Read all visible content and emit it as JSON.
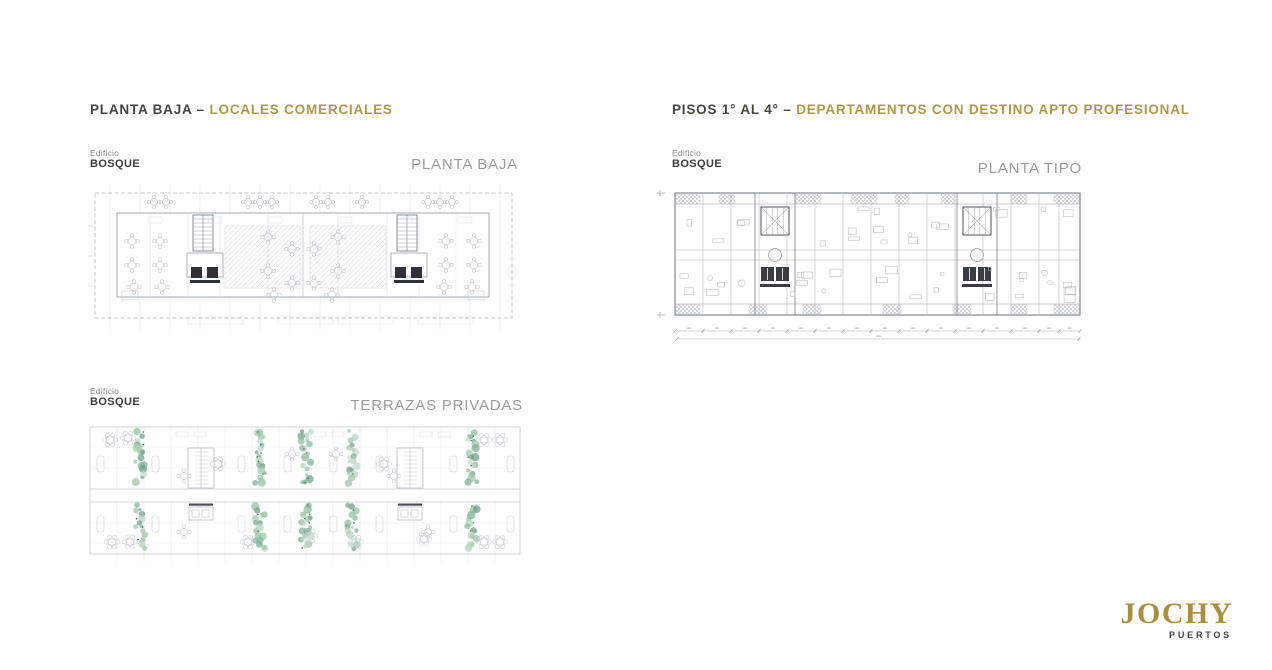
{
  "titles": {
    "left": {
      "main": "PLANTA BAJA –",
      "accent": "LOCALES COMERCIALES"
    },
    "right": {
      "main": "PISOS 1° AL 4° –",
      "accent": "DEPARTAMENTOS CON DESTINO APTO PROFESIONAL"
    }
  },
  "plans": {
    "planta_baja": {
      "edificio": "Edificio",
      "bosque": "BOSQUE",
      "name": "PLANTA BAJA"
    },
    "planta_tipo": {
      "edificio": "Edificio",
      "bosque": "BOSQUE",
      "name": "PLANTA TIPO"
    },
    "terrazas": {
      "edificio": "Edificio",
      "bosque": "BOSQUE",
      "name": "TERRAZAS PRIVADAS"
    }
  },
  "logo": {
    "brand": "JOCHY",
    "sub": "PUERTOS"
  },
  "colors": {
    "title_dark": "#46463f",
    "title_gold": "#b19849",
    "plan_gray": "#9c9c9c",
    "edificio_gray": "#8b8b8b",
    "bosque_dark": "#3d3d3d",
    "logo_gold": "#a98f3f",
    "logo_dark": "#42434b",
    "line_faint": "#e6e8ec",
    "line_light": "#c7cbd1",
    "line_mid": "#a3a8b0",
    "line_dark": "#6f757d",
    "ink_black": "#2e3238",
    "green_palette": [
      "#9fc5ab",
      "#7bb093",
      "#c2dbc8",
      "#6ba085",
      "#8fbf9f",
      "#b5d2ba"
    ],
    "green_dark": "#47745c"
  }
}
